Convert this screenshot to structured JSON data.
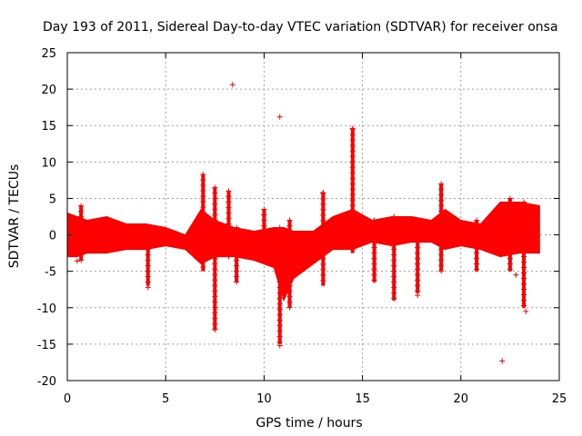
{
  "chart_data": {
    "type": "scatter",
    "title": "Day 193 of 2011, Sidereal Day-to-day VTEC variation (SDTVAR) for receiver onsa",
    "xlabel": "GPS time / hours",
    "ylabel": "SDTVAR / TECUs",
    "xlim": [
      0,
      25
    ],
    "ylim": [
      -20,
      25
    ],
    "xticks": [
      0,
      5,
      10,
      15,
      20,
      25
    ],
    "yticks": [
      -20,
      -15,
      -10,
      -5,
      0,
      5,
      10,
      15,
      20,
      25
    ],
    "grid": true,
    "marker": "+",
    "series_color": "#ff0000",
    "band": [
      {
        "x": 0.0,
        "lo": -3.0,
        "hi": 3.0
      },
      {
        "x": 0.5,
        "lo": -3.0,
        "hi": 2.5
      },
      {
        "x": 1.0,
        "lo": -2.5,
        "hi": 2.0
      },
      {
        "x": 2.0,
        "lo": -2.5,
        "hi": 2.5
      },
      {
        "x": 3.0,
        "lo": -2.0,
        "hi": 1.5
      },
      {
        "x": 4.0,
        "lo": -2.0,
        "hi": 1.5
      },
      {
        "x": 5.0,
        "lo": -1.5,
        "hi": 1.0
      },
      {
        "x": 6.0,
        "lo": -2.0,
        "hi": 0.0
      },
      {
        "x": 6.8,
        "lo": -4.0,
        "hi": 3.5
      },
      {
        "x": 7.5,
        "lo": -3.0,
        "hi": 2.0
      },
      {
        "x": 8.5,
        "lo": -3.0,
        "hi": 1.0
      },
      {
        "x": 9.5,
        "lo": -3.5,
        "hi": 0.5
      },
      {
        "x": 10.5,
        "lo": -4.5,
        "hi": 1.0
      },
      {
        "x": 11.0,
        "lo": -9.0,
        "hi": 1.0
      },
      {
        "x": 11.5,
        "lo": -6.0,
        "hi": 0.5
      },
      {
        "x": 12.5,
        "lo": -4.0,
        "hi": 0.5
      },
      {
        "x": 13.5,
        "lo": -2.0,
        "hi": 2.5
      },
      {
        "x": 14.5,
        "lo": -2.0,
        "hi": 3.5
      },
      {
        "x": 15.5,
        "lo": -1.0,
        "hi": 2.0
      },
      {
        "x": 16.5,
        "lo": -1.5,
        "hi": 2.5
      },
      {
        "x": 17.5,
        "lo": -1.0,
        "hi": 2.5
      },
      {
        "x": 18.5,
        "lo": -1.0,
        "hi": 2.0
      },
      {
        "x": 19.2,
        "lo": -2.0,
        "hi": 3.5
      },
      {
        "x": 20.0,
        "lo": -1.5,
        "hi": 2.0
      },
      {
        "x": 21.0,
        "lo": -2.0,
        "hi": 1.5
      },
      {
        "x": 22.0,
        "lo": -3.0,
        "hi": 4.5
      },
      {
        "x": 23.0,
        "lo": -2.5,
        "hi": 4.5
      },
      {
        "x": 24.0,
        "lo": -2.5,
        "hi": 4.0
      }
    ],
    "spikes": [
      {
        "x": 0.7,
        "lo": -3.5,
        "hi": 4.0
      },
      {
        "x": 4.1,
        "lo": -7.0,
        "hi": 1.0
      },
      {
        "x": 6.9,
        "lo": -5.0,
        "hi": 8.3
      },
      {
        "x": 7.5,
        "lo": -13.0,
        "hi": 6.5
      },
      {
        "x": 8.2,
        "lo": -3.0,
        "hi": 6.0
      },
      {
        "x": 8.6,
        "lo": -6.5,
        "hi": 1.0
      },
      {
        "x": 10.0,
        "lo": -3.0,
        "hi": 3.5
      },
      {
        "x": 10.8,
        "lo": -15.0,
        "hi": 1.0
      },
      {
        "x": 11.3,
        "lo": -10.0,
        "hi": 2.0
      },
      {
        "x": 13.0,
        "lo": -7.0,
        "hi": 5.7
      },
      {
        "x": 14.5,
        "lo": -2.5,
        "hi": 14.5
      },
      {
        "x": 15.6,
        "lo": -6.5,
        "hi": 2.0
      },
      {
        "x": 16.6,
        "lo": -9.0,
        "hi": 2.5
      },
      {
        "x": 17.8,
        "lo": -8.0,
        "hi": 2.0
      },
      {
        "x": 19.0,
        "lo": -5.0,
        "hi": 7.0
      },
      {
        "x": 20.8,
        "lo": -5.0,
        "hi": 2.0
      },
      {
        "x": 22.5,
        "lo": -5.0,
        "hi": 5.0
      },
      {
        "x": 23.2,
        "lo": -10.0,
        "hi": 4.5
      }
    ],
    "outliers": [
      {
        "x": 8.4,
        "y": 20.6
      },
      {
        "x": 10.8,
        "y": 16.2
      },
      {
        "x": 14.5,
        "y": 14.6
      },
      {
        "x": 13.0,
        "y": 5.8
      },
      {
        "x": 22.1,
        "y": -17.3
      },
      {
        "x": 7.5,
        "y": -13.0
      },
      {
        "x": 10.8,
        "y": -15.2
      },
      {
        "x": 23.3,
        "y": -10.5
      },
      {
        "x": 17.8,
        "y": -8.3
      },
      {
        "x": 4.1,
        "y": -7.2
      },
      {
        "x": 22.8,
        "y": -5.5
      },
      {
        "x": 0.5,
        "y": -3.6
      }
    ]
  }
}
